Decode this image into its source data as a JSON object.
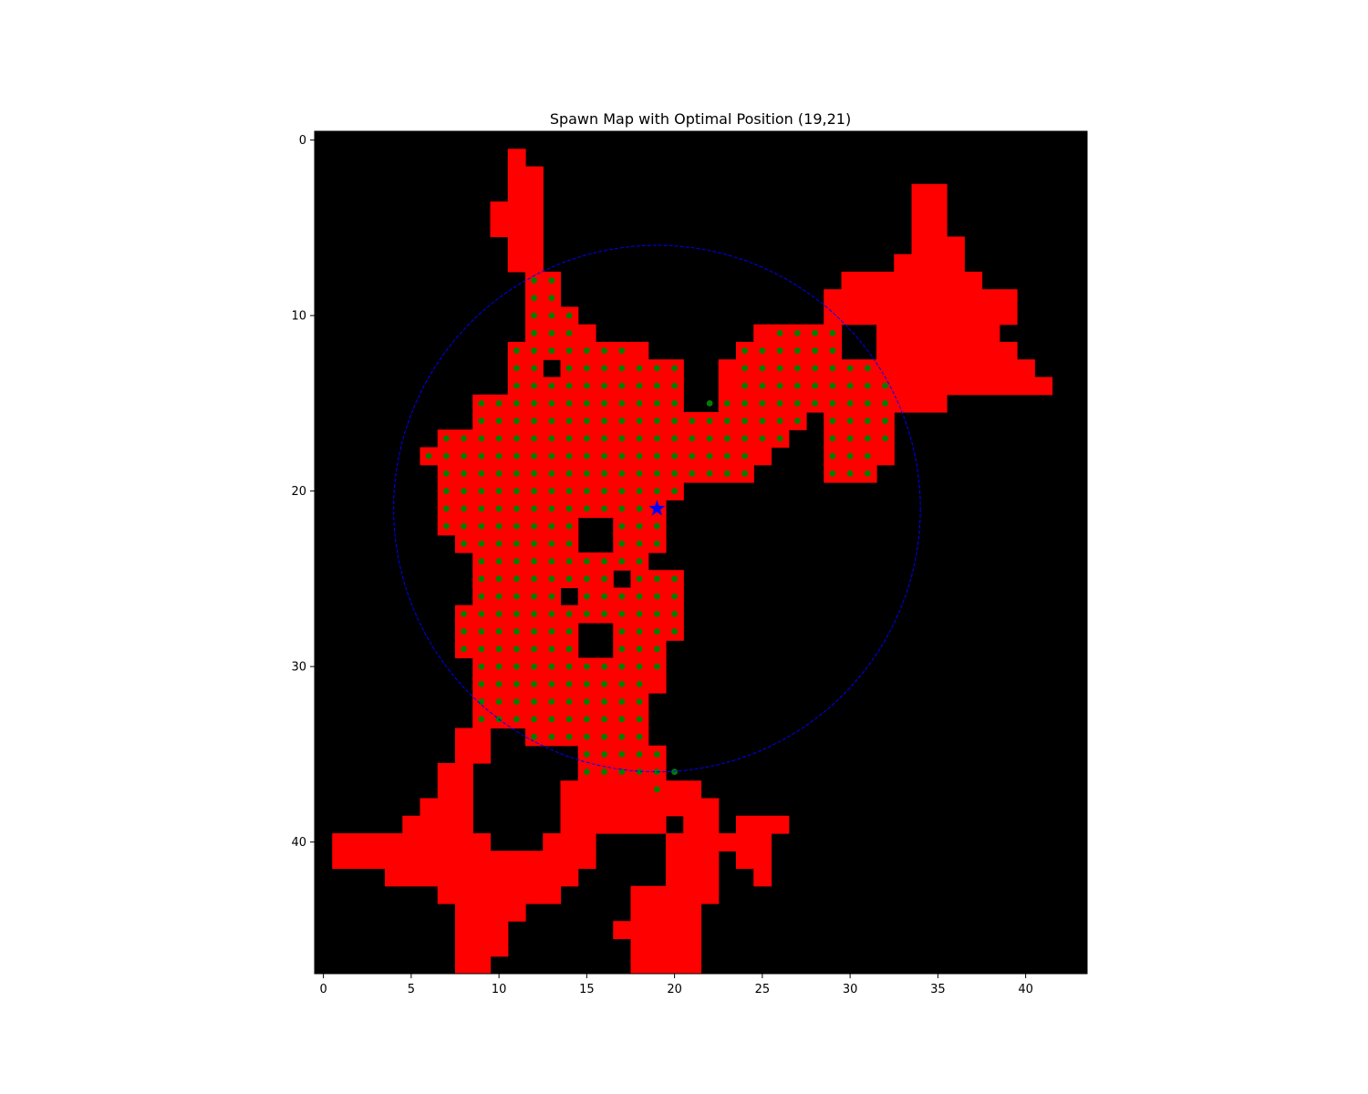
{
  "chart_data": {
    "type": "heatmap",
    "title": "Spawn Map with Optimal Position (19,21)",
    "xlabel": "",
    "ylabel": "",
    "xlim": [
      -0.5,
      43.5
    ],
    "ylim": [
      47.5,
      -0.5
    ],
    "x_ticks": [
      0,
      5,
      10,
      15,
      20,
      25,
      30,
      35,
      40
    ],
    "y_ticks": [
      0,
      10,
      20,
      30,
      40
    ],
    "grid": false,
    "colors": {
      "background": "#000000",
      "walkable": "#ff0000",
      "candidate": "#008000",
      "optimal": "#0000ff",
      "radius_circle": "#0000ff"
    },
    "walkable_cells": {
      "1": [
        [
          11,
          11
        ]
      ],
      "2": [
        [
          11,
          12
        ]
      ],
      "3": [
        [
          11,
          12
        ],
        [
          34,
          35
        ]
      ],
      "4": [
        [
          10,
          12
        ],
        [
          34,
          35
        ]
      ],
      "5": [
        [
          10,
          12
        ],
        [
          34,
          35
        ]
      ],
      "6": [
        [
          11,
          12
        ],
        [
          34,
          36
        ]
      ],
      "7": [
        [
          11,
          12
        ],
        [
          33,
          36
        ]
      ],
      "8": [
        [
          12,
          13
        ],
        [
          30,
          37
        ]
      ],
      "9": [
        [
          12,
          13
        ],
        [
          29,
          39
        ]
      ],
      "10": [
        [
          12,
          14
        ],
        [
          29,
          39
        ]
      ],
      "11": [
        [
          12,
          15
        ],
        [
          25,
          29
        ],
        [
          32,
          38
        ]
      ],
      "12": [
        [
          11,
          18
        ],
        [
          24,
          29
        ],
        [
          32,
          39
        ]
      ],
      "13": [
        [
          11,
          12
        ],
        [
          14,
          20
        ],
        [
          23,
          40
        ]
      ],
      "14": [
        [
          11,
          20
        ],
        [
          23,
          41
        ]
      ],
      "15": [
        [
          9,
          20
        ],
        [
          23,
          35
        ]
      ],
      "16": [
        [
          9,
          27
        ],
        [
          29,
          32
        ]
      ],
      "17": [
        [
          7,
          26
        ],
        [
          29,
          32
        ]
      ],
      "18": [
        [
          6,
          25
        ],
        [
          29,
          32
        ]
      ],
      "19": [
        [
          7,
          24
        ],
        [
          29,
          31
        ]
      ],
      "20": [
        [
          7,
          20
        ]
      ],
      "21": [
        [
          7,
          19
        ]
      ],
      "22": [
        [
          7,
          14
        ],
        [
          17,
          19
        ]
      ],
      "23": [
        [
          8,
          14
        ],
        [
          17,
          19
        ]
      ],
      "24": [
        [
          9,
          18
        ]
      ],
      "25": [
        [
          9,
          16
        ],
        [
          18,
          20
        ]
      ],
      "26": [
        [
          9,
          13
        ],
        [
          15,
          20
        ]
      ],
      "27": [
        [
          8,
          20
        ]
      ],
      "28": [
        [
          8,
          14
        ],
        [
          17,
          20
        ]
      ],
      "29": [
        [
          8,
          14
        ],
        [
          17,
          19
        ]
      ],
      "30": [
        [
          9,
          19
        ]
      ],
      "31": [
        [
          9,
          19
        ]
      ],
      "32": [
        [
          9,
          18
        ]
      ],
      "33": [
        [
          9,
          18
        ]
      ],
      "34": [
        [
          8,
          9
        ],
        [
          12,
          18
        ]
      ],
      "35": [
        [
          8,
          9
        ],
        [
          15,
          19
        ]
      ],
      "36": [
        [
          7,
          8
        ],
        [
          15,
          19
        ]
      ],
      "37": [
        [
          7,
          8
        ],
        [
          14,
          21
        ]
      ],
      "38": [
        [
          6,
          8
        ],
        [
          14,
          22
        ]
      ],
      "39": [
        [
          5,
          8
        ],
        [
          14,
          19
        ],
        [
          21,
          22
        ],
        [
          24,
          26
        ]
      ],
      "40": [
        [
          1,
          9
        ],
        [
          13,
          15
        ],
        [
          20,
          25
        ]
      ],
      "41": [
        [
          1,
          15
        ],
        [
          20,
          22
        ],
        [
          24,
          25
        ]
      ],
      "42": [
        [
          4,
          14
        ],
        [
          20,
          22
        ],
        [
          25,
          25
        ]
      ],
      "43": [
        [
          7,
          13
        ],
        [
          18,
          22
        ]
      ],
      "44": [
        [
          8,
          11
        ],
        [
          18,
          21
        ]
      ],
      "45": [
        [
          8,
          10
        ],
        [
          17,
          21
        ]
      ],
      "46": [
        [
          8,
          10
        ],
        [
          18,
          21
        ]
      ],
      "47": [
        [
          8,
          9
        ],
        [
          18,
          21
        ]
      ],
      "48": [
        [
          8,
          8
        ],
        [
          19,
          20
        ]
      ]
    },
    "candidate_points": {
      "8": [
        [
          12,
          13
        ]
      ],
      "9": [
        [
          12,
          13
        ]
      ],
      "10": [
        [
          12,
          14
        ]
      ],
      "11": [
        [
          12,
          14
        ],
        [
          26,
          29
        ]
      ],
      "12": [
        [
          11,
          17
        ],
        [
          24,
          29
        ]
      ],
      "13": [
        [
          11,
          12
        ],
        [
          14,
          20
        ],
        [
          24,
          31
        ]
      ],
      "14": [
        [
          11,
          20
        ],
        [
          24,
          32
        ]
      ],
      "15": [
        [
          9,
          20
        ],
        [
          22,
          32
        ]
      ],
      "16": [
        [
          9,
          27
        ],
        [
          29,
          32
        ]
      ],
      "17": [
        [
          7,
          26
        ],
        [
          29,
          32
        ]
      ],
      "18": [
        [
          6,
          24
        ],
        [
          29,
          31
        ]
      ],
      "19": [
        [
          7,
          24
        ],
        [
          29,
          31
        ]
      ],
      "20": [
        [
          7,
          20
        ]
      ],
      "21": [
        [
          7,
          19
        ]
      ],
      "22": [
        [
          7,
          14
        ],
        [
          17,
          19
        ]
      ],
      "23": [
        [
          8,
          14
        ],
        [
          17,
          19
        ]
      ],
      "24": [
        [
          9,
          18
        ]
      ],
      "25": [
        [
          9,
          16
        ],
        [
          18,
          20
        ]
      ],
      "26": [
        [
          9,
          13
        ],
        [
          15,
          20
        ]
      ],
      "27": [
        [
          8,
          20
        ]
      ],
      "28": [
        [
          8,
          14
        ],
        [
          17,
          20
        ]
      ],
      "29": [
        [
          8,
          14
        ],
        [
          17,
          19
        ]
      ],
      "30": [
        [
          9,
          19
        ]
      ],
      "31": [
        [
          9,
          18
        ]
      ],
      "32": [
        [
          9,
          18
        ]
      ],
      "33": [
        [
          9,
          18
        ]
      ],
      "34": [
        [
          12,
          18
        ]
      ],
      "35": [
        [
          15,
          19
        ]
      ],
      "36": [
        [
          15,
          20
        ]
      ],
      "37": [
        [
          19,
          19
        ]
      ]
    },
    "optimal_position": {
      "x": 19,
      "y": 21
    },
    "radius": 15
  }
}
